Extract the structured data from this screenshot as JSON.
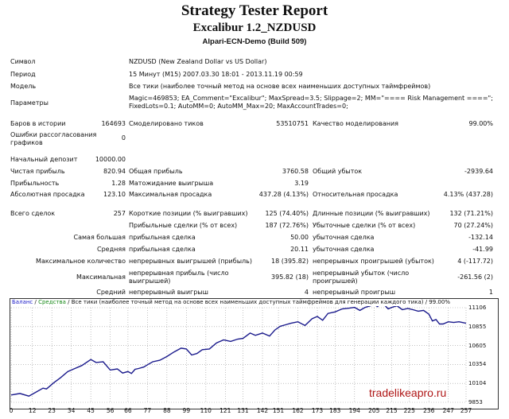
{
  "header": {
    "title": "Strategy Tester Report",
    "ea": "Excalibur 1.2_NZDUSD",
    "server": "Alpari-ECN-Demo (Build 509)"
  },
  "info": {
    "symbol_label": "Символ",
    "symbol_value": "NZDUSD (New Zealand Dollar vs US Dollar)",
    "period_label": "Период",
    "period_value": "15 Минут (M15) 2007.03.30 18:01 - 2013.11.19 00:59",
    "model_label": "Модель",
    "model_value": "Все тики (наиболее точный метод на основе всех наименьших доступных таймфреймов)",
    "params_label": "Параметры",
    "params_line1": "Magic=469853; EA_Comment=\"Excalibur\"; MaxSpread=3.5; Slippage=2; MM=\"==== Risk Management ====\";",
    "params_line2": "FixedLots=0.1; AutoMM=0; AutoMM_Max=20; MaxAccountTrades=0;"
  },
  "stats": {
    "bars_label": "Баров в истории",
    "bars_value": "164693",
    "ticks_label": "Смоделировано тиков",
    "ticks_value": "53510751",
    "quality_label": "Качество моделирования",
    "quality_value": "99.00%",
    "errors_label_1": "Ошибки рассогласования",
    "errors_label_2": "графиков",
    "errors_value": "0",
    "deposit_label": "Начальный депозит",
    "deposit_value": "10000.00",
    "net_label": "Чистая прибыль",
    "net_value": "820.94",
    "gross_profit_label": "Общая прибыль",
    "gross_profit_value": "3760.58",
    "gross_loss_label": "Общий убыток",
    "gross_loss_value": "-2939.64",
    "pf_label": "Прибыльность",
    "pf_value": "1.28",
    "expected_label": "Матожидание выигрыша",
    "expected_value": "3.19",
    "abs_dd_label": "Абсолютная просадка",
    "abs_dd_value": "123.10",
    "max_dd_label": "Максимальная просадка",
    "max_dd_value": "437.28 (4.13%)",
    "rel_dd_label": "Относительная просадка",
    "rel_dd_value": "4.13% (437.28)",
    "total_label": "Всего сделок",
    "total_value": "257",
    "short_label": "Короткие позиции (% выигравших)",
    "short_value": "125 (74.40%)",
    "long_label": "Длинные позиции (% выигравших)",
    "long_value": "132 (71.21%)",
    "profit_trades_label": "Прибыльные сделки (% от всех)",
    "profit_trades_value": "187 (72.76%)",
    "loss_trades_label": "Убыточные сделки (% от всех)",
    "loss_trades_value": "70 (27.24%)",
    "largest_label": "Самая большая",
    "largest_profit_label": "прибыльная сделка",
    "largest_profit_value": "50.00",
    "largest_loss_label": "убыточная сделка",
    "largest_loss_value": "-132.14",
    "average_label": "Средняя",
    "average_profit_label": "прибыльная сделка",
    "average_profit_value": "20.11",
    "average_loss_label": "убыточная сделка",
    "average_loss_value": "-41.99",
    "maxcount_label": "Максимальное количество",
    "maxcount_wins_label": "непрерывных выигрышей (прибыль)",
    "maxcount_wins_value": "18 (395.82)",
    "maxcount_losses_label": "непрерывных проигрышей (убыток)",
    "maxcount_losses_value": "4 (-117.72)",
    "maximal_label": "Максимальная",
    "maximal_profit_label_1": "непрерывная прибыль (число",
    "maximal_profit_label_2": "выигрышей)",
    "maximal_profit_value": "395.82 (18)",
    "maximal_loss_label_1": "непрерывный убыток (число",
    "maximal_loss_label_2": "проигрышей)",
    "maximal_loss_value": "-261.56 (2)",
    "avg_label": "Средний",
    "avg_wins_label": "непрерывный выигрыш",
    "avg_wins_value": "4",
    "avg_losses_label": "непрерывный проигрыш",
    "avg_losses_value": "1"
  },
  "chart_legend": {
    "balance": "Баланс",
    "sep": " / ",
    "equity": "Средства",
    "rest": " / Все тики (наиболее точный метод на основе всех наименьших доступных таймфреймов для генерации каждого тика) / 99.00%"
  },
  "watermark": "tradelikeapro.ru",
  "colors": {
    "balance_line": "#1a1a8c",
    "equity_legend": "#1a8a1a",
    "grid": "#9a9a9a",
    "watermark": "#b01818"
  },
  "chart_data": {
    "type": "line",
    "x_ticks": [
      "0",
      "12",
      "23",
      "34",
      "45",
      "56",
      "66",
      "77",
      "88",
      "99",
      "110",
      "121",
      "131",
      "142",
      "151",
      "162",
      "173",
      "183",
      "194",
      "205",
      "215",
      "225",
      "236",
      "247",
      "257"
    ],
    "y_ticks": [
      "11106",
      "10855",
      "10605",
      "10354",
      "10104",
      "9853"
    ],
    "ylim": [
      9853,
      11106
    ],
    "xlim": [
      0,
      257
    ],
    "series": [
      {
        "name": "Баланс",
        "x": [
          0,
          5,
          10,
          15,
          18,
          20,
          24,
          28,
          32,
          36,
          40,
          45,
          48,
          52,
          56,
          60,
          63,
          66,
          68,
          70,
          72,
          75,
          77,
          80,
          84,
          88,
          92,
          96,
          99,
          102,
          105,
          108,
          112,
          116,
          120,
          124,
          128,
          131,
          135,
          138,
          142,
          146,
          149,
          152,
          155,
          158,
          162,
          166,
          170,
          173,
          176,
          179,
          183,
          187,
          191,
          194,
          197,
          200,
          203,
          205,
          207,
          209,
          211,
          213,
          215,
          218,
          221,
          224,
          227,
          230,
          233,
          236,
          238,
          240,
          242,
          244,
          247,
          250,
          253,
          257
        ],
        "y": [
          9950,
          9970,
          9935,
          10000,
          10040,
          10030,
          10110,
          10180,
          10260,
          10300,
          10340,
          10420,
          10380,
          10390,
          10280,
          10295,
          10240,
          10260,
          10235,
          10290,
          10300,
          10320,
          10350,
          10390,
          10410,
          10460,
          10520,
          10570,
          10560,
          10480,
          10500,
          10550,
          10560,
          10640,
          10680,
          10660,
          10690,
          10700,
          10770,
          10740,
          10770,
          10730,
          10810,
          10860,
          10880,
          10900,
          10920,
          10870,
          10960,
          10990,
          10940,
          11030,
          11050,
          11090,
          11100,
          11110,
          11070,
          11110,
          11130,
          11150,
          11120,
          11170,
          11140,
          11090,
          11110,
          11130,
          11080,
          11095,
          11080,
          11060,
          11070,
          11020,
          10930,
          10950,
          10890,
          10890,
          10920,
          10910,
          10920,
          10900
        ]
      }
    ]
  }
}
